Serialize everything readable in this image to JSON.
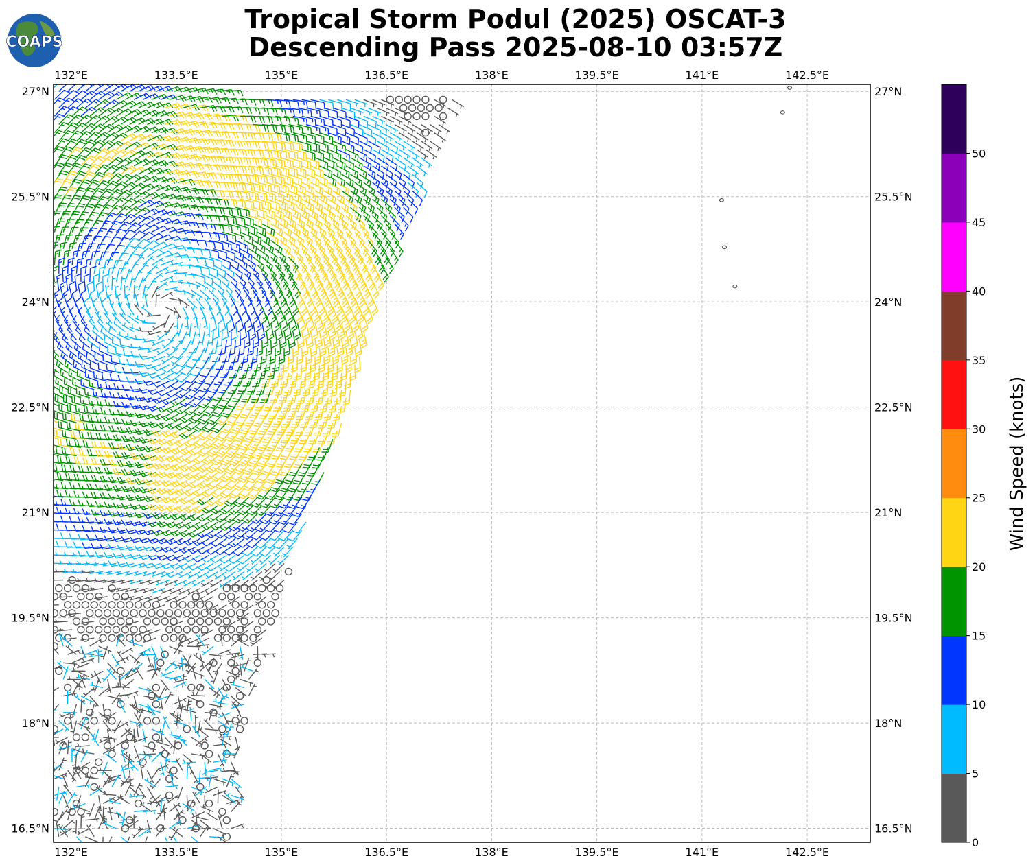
{
  "title": {
    "line1": "Tropical Storm Podul (2025) OSCAT-3",
    "line2": "Descending Pass 2025-08-10 03:57Z"
  },
  "logo": {
    "text": "COAPS"
  },
  "colors": {
    "frame": "#000000",
    "grid": "#bdbdbd",
    "coast": "#444444"
  },
  "chart_data": {
    "type": "wind-barb-map",
    "title": "Tropical Storm Podul (2025) OSCAT-3 Descending Pass 2025-08-10 03:57Z",
    "x_ticks": [
      {
        "value": 132,
        "label": "132°E"
      },
      {
        "value": 133.5,
        "label": "133.5°E"
      },
      {
        "value": 135,
        "label": "135°E"
      },
      {
        "value": 136.5,
        "label": "136.5°E"
      },
      {
        "value": 138,
        "label": "138°E"
      },
      {
        "value": 139.5,
        "label": "139.5°E"
      },
      {
        "value": 141,
        "label": "141°E"
      },
      {
        "value": 142.5,
        "label": "142.5°E"
      }
    ],
    "y_ticks": [
      {
        "value": 27,
        "label": "27°N"
      },
      {
        "value": 25.5,
        "label": "25.5°N"
      },
      {
        "value": 24,
        "label": "24°N"
      },
      {
        "value": 22.5,
        "label": "22.5°N"
      },
      {
        "value": 21,
        "label": "21°N"
      },
      {
        "value": 19.5,
        "label": "19.5°N"
      },
      {
        "value": 18,
        "label": "18°N"
      },
      {
        "value": 16.5,
        "label": "16.5°N"
      }
    ],
    "xlim": [
      131.75,
      143.4
    ],
    "ylim": [
      16.3,
      27.1
    ],
    "grid": true,
    "colorbar": {
      "label": "Wind Speed (knots)",
      "range": [
        0,
        55
      ],
      "ticks": [
        0,
        5,
        10,
        15,
        20,
        25,
        30,
        35,
        40,
        45,
        50
      ],
      "bins": [
        {
          "from": 0,
          "to": 5,
          "color": "#595959"
        },
        {
          "from": 5,
          "to": 10,
          "color": "#00bbff"
        },
        {
          "from": 10,
          "to": 15,
          "color": "#0036ff"
        },
        {
          "from": 15,
          "to": 20,
          "color": "#009400"
        },
        {
          "from": 20,
          "to": 25,
          "color": "#ffd514"
        },
        {
          "from": 25,
          "to": 30,
          "color": "#ff8c0e"
        },
        {
          "from": 30,
          "to": 35,
          "color": "#ff1111"
        },
        {
          "from": 35,
          "to": 40,
          "color": "#7f3d2a"
        },
        {
          "from": 40,
          "to": 45,
          "color": "#ff00ff"
        },
        {
          "from": 45,
          "to": 50,
          "color": "#8b00b8"
        },
        {
          "from": 50,
          "to": 55,
          "color": "#2e005c"
        }
      ]
    },
    "storm_center": {
      "lon": 133.3,
      "lat": 23.9
    },
    "swath": {
      "east_edge": [
        {
          "lat": 26.9,
          "lon": 137.45
        },
        {
          "lat": 25.5,
          "lon": 136.85
        },
        {
          "lat": 24,
          "lon": 136.3
        },
        {
          "lat": 22.5,
          "lon": 135.95
        },
        {
          "lat": 21,
          "lon": 135.4
        },
        {
          "lat": 19.5,
          "lon": 134.9
        },
        {
          "lat": 18.4,
          "lon": 134.55
        },
        {
          "lat": 17.4,
          "lon": 134.4
        },
        {
          "lat": 16.3,
          "lon": 134.3
        }
      ]
    },
    "islands": [
      {
        "lon": 142.25,
        "lat": 27.05
      },
      {
        "lon": 142.15,
        "lat": 26.7
      },
      {
        "lon": 141.28,
        "lat": 25.45
      },
      {
        "lon": 141.32,
        "lat": 24.78
      },
      {
        "lon": 141.47,
        "lat": 24.22
      }
    ]
  }
}
